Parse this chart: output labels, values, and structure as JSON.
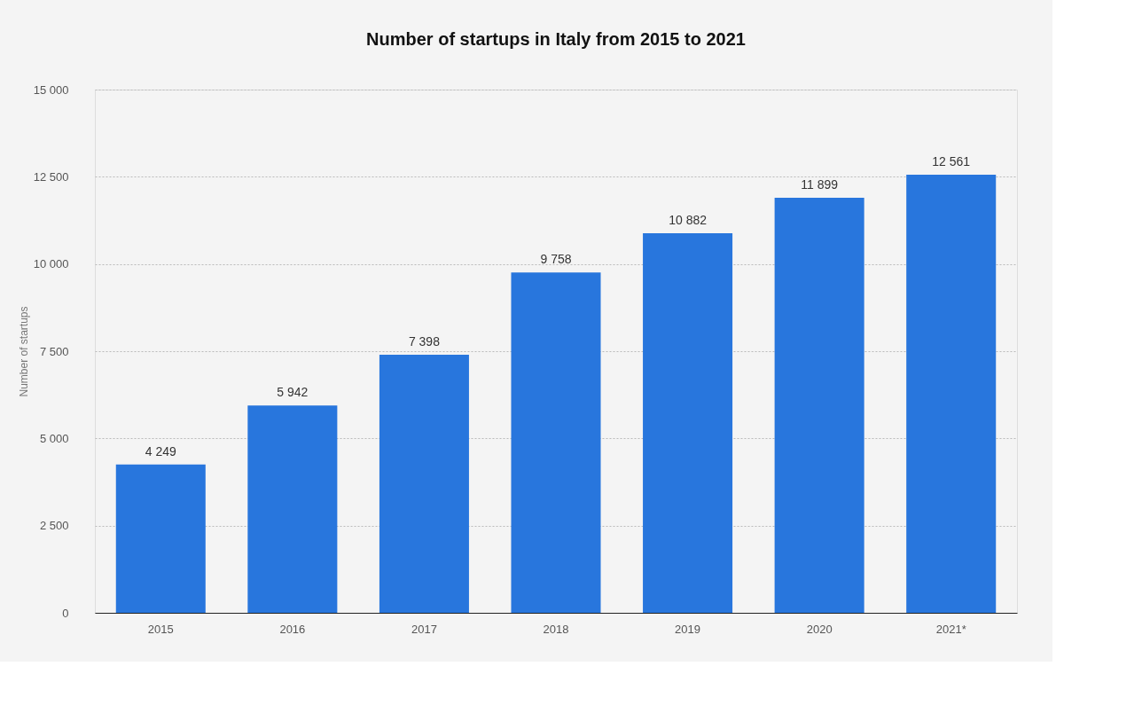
{
  "chart_data": {
    "type": "bar",
    "title": "Number of startups in Italy from 2015 to 2021",
    "ylabel": "Number of startups",
    "categories": [
      "2015",
      "2016",
      "2017",
      "2018",
      "2019",
      "2020",
      "2021*"
    ],
    "values": [
      4249,
      5942,
      7398,
      9758,
      10882,
      11899,
      12561
    ],
    "value_labels": [
      "4 249",
      "5 942",
      "7 398",
      "9 758",
      "10 882",
      "11 899",
      "12 561"
    ],
    "color": "#2876dd",
    "ylim": [
      0,
      15000
    ],
    "yticks": [
      {
        "value": 0,
        "label": "0"
      },
      {
        "value": 2500,
        "label": "2 500"
      },
      {
        "value": 5000,
        "label": "5 000"
      },
      {
        "value": 7500,
        "label": "7 500"
      },
      {
        "value": 10000,
        "label": "10 000"
      },
      {
        "value": 12500,
        "label": "12 500"
      },
      {
        "value": 15000,
        "label": "15 000"
      }
    ],
    "grid": "y"
  }
}
